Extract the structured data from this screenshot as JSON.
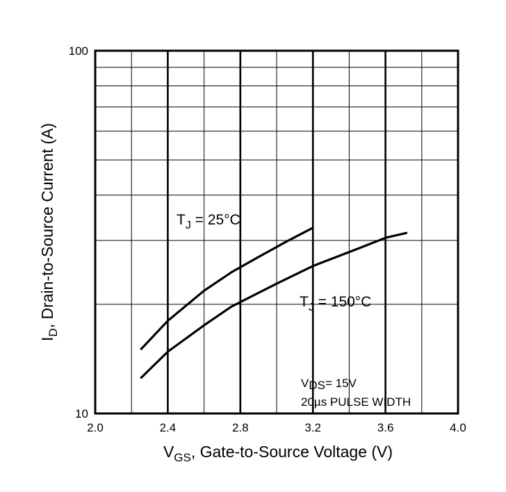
{
  "chart_data": {
    "type": "line",
    "xlabel": {
      "main": "V",
      "sub": "GS",
      "rest": ", Gate-to-Source Voltage (V)"
    },
    "ylabel": {
      "main": "I",
      "sub": "D",
      "rest": ",  Drain-to-Source Current (A)"
    },
    "xlim": [
      2.0,
      4.0
    ],
    "ylim": [
      10,
      100
    ],
    "yscale": "log",
    "grid": true,
    "x_ticks": [
      "2.0",
      "2.4",
      "2.8",
      "3.2",
      "3.6",
      "4.0"
    ],
    "x_tick_values": [
      2.0,
      2.4,
      2.8,
      3.2,
      3.6,
      4.0
    ],
    "y_ticks": [
      "10",
      "100"
    ],
    "y_tick_values": [
      10,
      100
    ],
    "series": [
      {
        "label": {
          "main": "T",
          "sub": "J",
          "rest": " = 25°C"
        },
        "x": [
          2.25,
          2.4,
          2.6,
          2.75,
          2.9,
          3.05,
          3.2
        ],
        "y": [
          15.0,
          18.0,
          21.8,
          24.5,
          27.0,
          29.7,
          32.5
        ]
      },
      {
        "label": {
          "main": "T",
          "sub": "J",
          "rest": " = 150°C"
        },
        "x": [
          2.25,
          2.4,
          2.6,
          2.75,
          3.0,
          3.2,
          3.45,
          3.6,
          3.72
        ],
        "y": [
          12.5,
          14.8,
          17.5,
          19.7,
          22.8,
          25.5,
          28.5,
          30.5,
          31.5
        ]
      }
    ],
    "annotations": [
      {
        "main": "V",
        "sub": "DS",
        "rest": "= 15V"
      },
      {
        "main": "20µs PULSE WIDTH",
        "sub": "",
        "rest": ""
      }
    ]
  }
}
